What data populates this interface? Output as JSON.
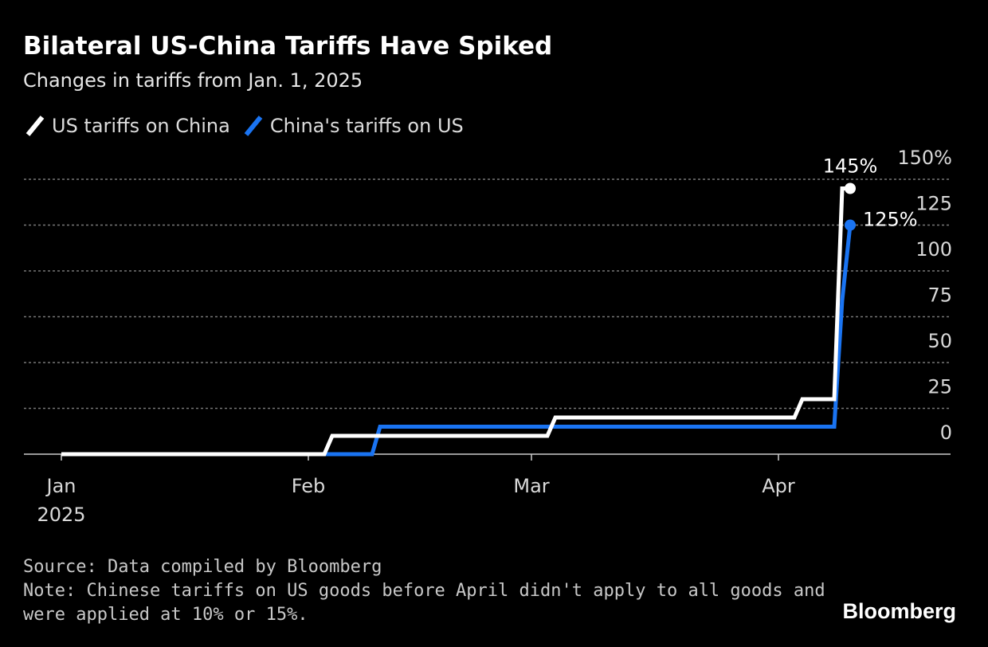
{
  "chart_data": {
    "type": "line",
    "step": true,
    "title": "Bilateral US-China Tariffs Have Spiked",
    "subtitle": "Changes in tariffs from Jan. 1, 2025",
    "x_ticks": [
      {
        "date": "2025-01-01",
        "label": "Jan",
        "sublabel": "2025"
      },
      {
        "date": "2025-02-01",
        "label": "Feb"
      },
      {
        "date": "2025-03-01",
        "label": "Mar"
      },
      {
        "date": "2025-04-01",
        "label": "Apr"
      }
    ],
    "xlim": [
      "2025-01-01",
      "2025-04-20"
    ],
    "ylim": [
      0,
      150
    ],
    "y_ticks": [
      {
        "value": 150,
        "label": "150%"
      },
      {
        "value": 125,
        "label": "125"
      },
      {
        "value": 100,
        "label": "100"
      },
      {
        "value": 75,
        "label": "75"
      },
      {
        "value": 50,
        "label": "50"
      },
      {
        "value": 25,
        "label": "25"
      },
      {
        "value": 0,
        "label": "0"
      }
    ],
    "grid": true,
    "legend_position": "top-left",
    "series": [
      {
        "name": "US tariffs on China",
        "color": "#ffffff",
        "points": [
          {
            "date": "2025-01-01",
            "value": 0
          },
          {
            "date": "2025-02-03",
            "value": 0
          },
          {
            "date": "2025-02-04",
            "value": 10
          },
          {
            "date": "2025-03-03",
            "value": 10
          },
          {
            "date": "2025-03-04",
            "value": 20
          },
          {
            "date": "2025-04-03",
            "value": 20
          },
          {
            "date": "2025-04-04",
            "value": 30
          },
          {
            "date": "2025-04-08",
            "value": 30
          },
          {
            "date": "2025-04-09",
            "value": 145
          },
          {
            "date": "2025-04-10",
            "value": 145
          }
        ],
        "end_label": "145%"
      },
      {
        "name": "China's tariffs on US",
        "color": "#1a74f2",
        "points": [
          {
            "date": "2025-01-01",
            "value": 0
          },
          {
            "date": "2025-02-09",
            "value": 0
          },
          {
            "date": "2025-02-10",
            "value": 15
          },
          {
            "date": "2025-04-08",
            "value": 15
          },
          {
            "date": "2025-04-09",
            "value": 84
          },
          {
            "date": "2025-04-10",
            "value": 125
          }
        ],
        "end_label": "125%"
      }
    ]
  },
  "footer": {
    "source": "Source: Data compiled by Bloomberg",
    "note_line1": "Note: Chinese tariffs on US goods before April didn't apply to all goods and",
    "note_line2": "were applied at 10% or 15%."
  },
  "brand": "Bloomberg",
  "colors": {
    "background": "#000000",
    "grid": "#777777",
    "axis": "#cccccc"
  }
}
